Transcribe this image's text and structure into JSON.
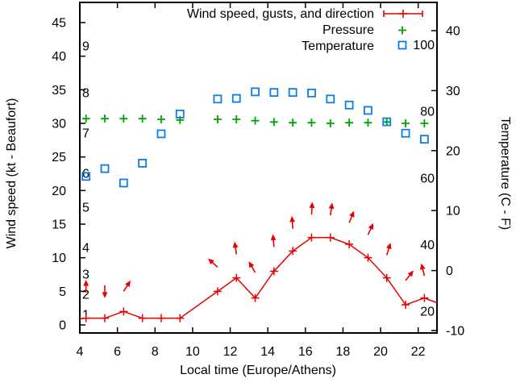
{
  "chart_data": {
    "type": "line",
    "title": "",
    "xlabel": "Local time (Europe/Athens)",
    "ylabel_left": "Wind speed (kt - Beaufort)",
    "ylabel_right": "Temperature (C - F)",
    "x_range": [
      4,
      23
    ],
    "x_ticks": [
      4,
      6,
      8,
      10,
      12,
      14,
      16,
      18,
      20,
      22
    ],
    "y_left_ticks_kt": [
      0,
      5,
      10,
      15,
      20,
      25,
      30,
      35,
      40,
      45
    ],
    "y_left_range_kt": [
      -1.2,
      48
    ],
    "y_right_ticks_c": [
      -10,
      0,
      10,
      20,
      30,
      40
    ],
    "beaufort_inner_labels": [
      {
        "beaufort": 1,
        "kt": 1
      },
      {
        "beaufort": 2,
        "kt": 4
      },
      {
        "beaufort": 3,
        "kt": 7
      },
      {
        "beaufort": 4,
        "kt": 11
      },
      {
        "beaufort": 5,
        "kt": 17
      },
      {
        "beaufort": 6,
        "kt": 22
      },
      {
        "beaufort": 7,
        "kt": 28
      },
      {
        "beaufort": 8,
        "kt": 34
      },
      {
        "beaufort": 9,
        "kt": 41
      }
    ],
    "fahrenheit_inner_labels": [
      20,
      40,
      60,
      80,
      100
    ],
    "legend": [
      {
        "label": "Wind speed, gusts, and direction",
        "marker": "errorbar-plus",
        "color": "#e60000"
      },
      {
        "label": "Pressure",
        "marker": "plus",
        "color": "#00a400"
      },
      {
        "label": "Temperature",
        "marker": "open-square",
        "color": "#0c7ce8"
      }
    ],
    "x": [
      4.33,
      5.33,
      6.33,
      7.33,
      8.33,
      9.33,
      11.33,
      12.33,
      13.33,
      14.33,
      15.33,
      16.33,
      17.33,
      18.33,
      19.33,
      20.33,
      21.33,
      22.33
    ],
    "series": {
      "wind_speed_kt": {
        "name": "Wind speed, gusts, and direction",
        "values": [
          1,
          1,
          2,
          1,
          1,
          1,
          5,
          7,
          4,
          8,
          11,
          13,
          13,
          12,
          10,
          7,
          3,
          4
        ],
        "edge_start": [
          4.0,
          0.9
        ],
        "edge_end": [
          23.0,
          3.3
        ]
      },
      "pressure": {
        "name": "Pressure",
        "note_units": "displayed flat near mid-plot; values read on left-axis kt scale",
        "values_kt_axis": [
          30.7,
          30.7,
          30.7,
          30.7,
          30.6,
          30.5,
          30.6,
          30.6,
          30.4,
          30.2,
          30.1,
          30.1,
          30.0,
          30.1,
          30.1,
          30.2,
          30.0,
          30.0
        ]
      },
      "temperature_c": {
        "name": "Temperature",
        "values": [
          15.7,
          17.0,
          14.6,
          17.9,
          22.8,
          26.1,
          28.6,
          28.7,
          29.8,
          29.7,
          29.7,
          29.6,
          28.6,
          27.6,
          26.7,
          24.8,
          22.9,
          21.9
        ]
      }
    },
    "wind_arrows": [
      {
        "x": 4.33,
        "base_kt": 4.8,
        "angle_deg": 0
      },
      {
        "x": 5.33,
        "base_kt": 5.9,
        "angle_deg": 180
      },
      {
        "x": 6.33,
        "base_kt": 5.0,
        "angle_deg": 33
      },
      {
        "x": 11.33,
        "base_kt": 8.6,
        "angle_deg": -48
      },
      {
        "x": 12.33,
        "base_kt": 10.5,
        "angle_deg": -8
      },
      {
        "x": 13.33,
        "base_kt": 7.8,
        "angle_deg": -30
      },
      {
        "x": 14.33,
        "base_kt": 11.6,
        "angle_deg": -5
      },
      {
        "x": 15.33,
        "base_kt": 14.3,
        "angle_deg": -4
      },
      {
        "x": 16.33,
        "base_kt": 16.4,
        "angle_deg": 3
      },
      {
        "x": 17.33,
        "base_kt": 16.3,
        "angle_deg": 8
      },
      {
        "x": 18.33,
        "base_kt": 15.2,
        "angle_deg": 22
      },
      {
        "x": 19.33,
        "base_kt": 13.4,
        "angle_deg": 24
      },
      {
        "x": 20.33,
        "base_kt": 10.4,
        "angle_deg": 17
      },
      {
        "x": 21.33,
        "base_kt": 6.6,
        "angle_deg": 38
      },
      {
        "x": 22.33,
        "base_kt": 7.3,
        "angle_deg": -14
      }
    ],
    "grid": "off",
    "legend_position": "top-right-inside",
    "colors": {
      "wind": "#e60000",
      "pressure": "#00a400",
      "temperature": "#0c7ce8",
      "text": "#000000",
      "background": "#ffffff",
      "border": "#000000"
    }
  }
}
